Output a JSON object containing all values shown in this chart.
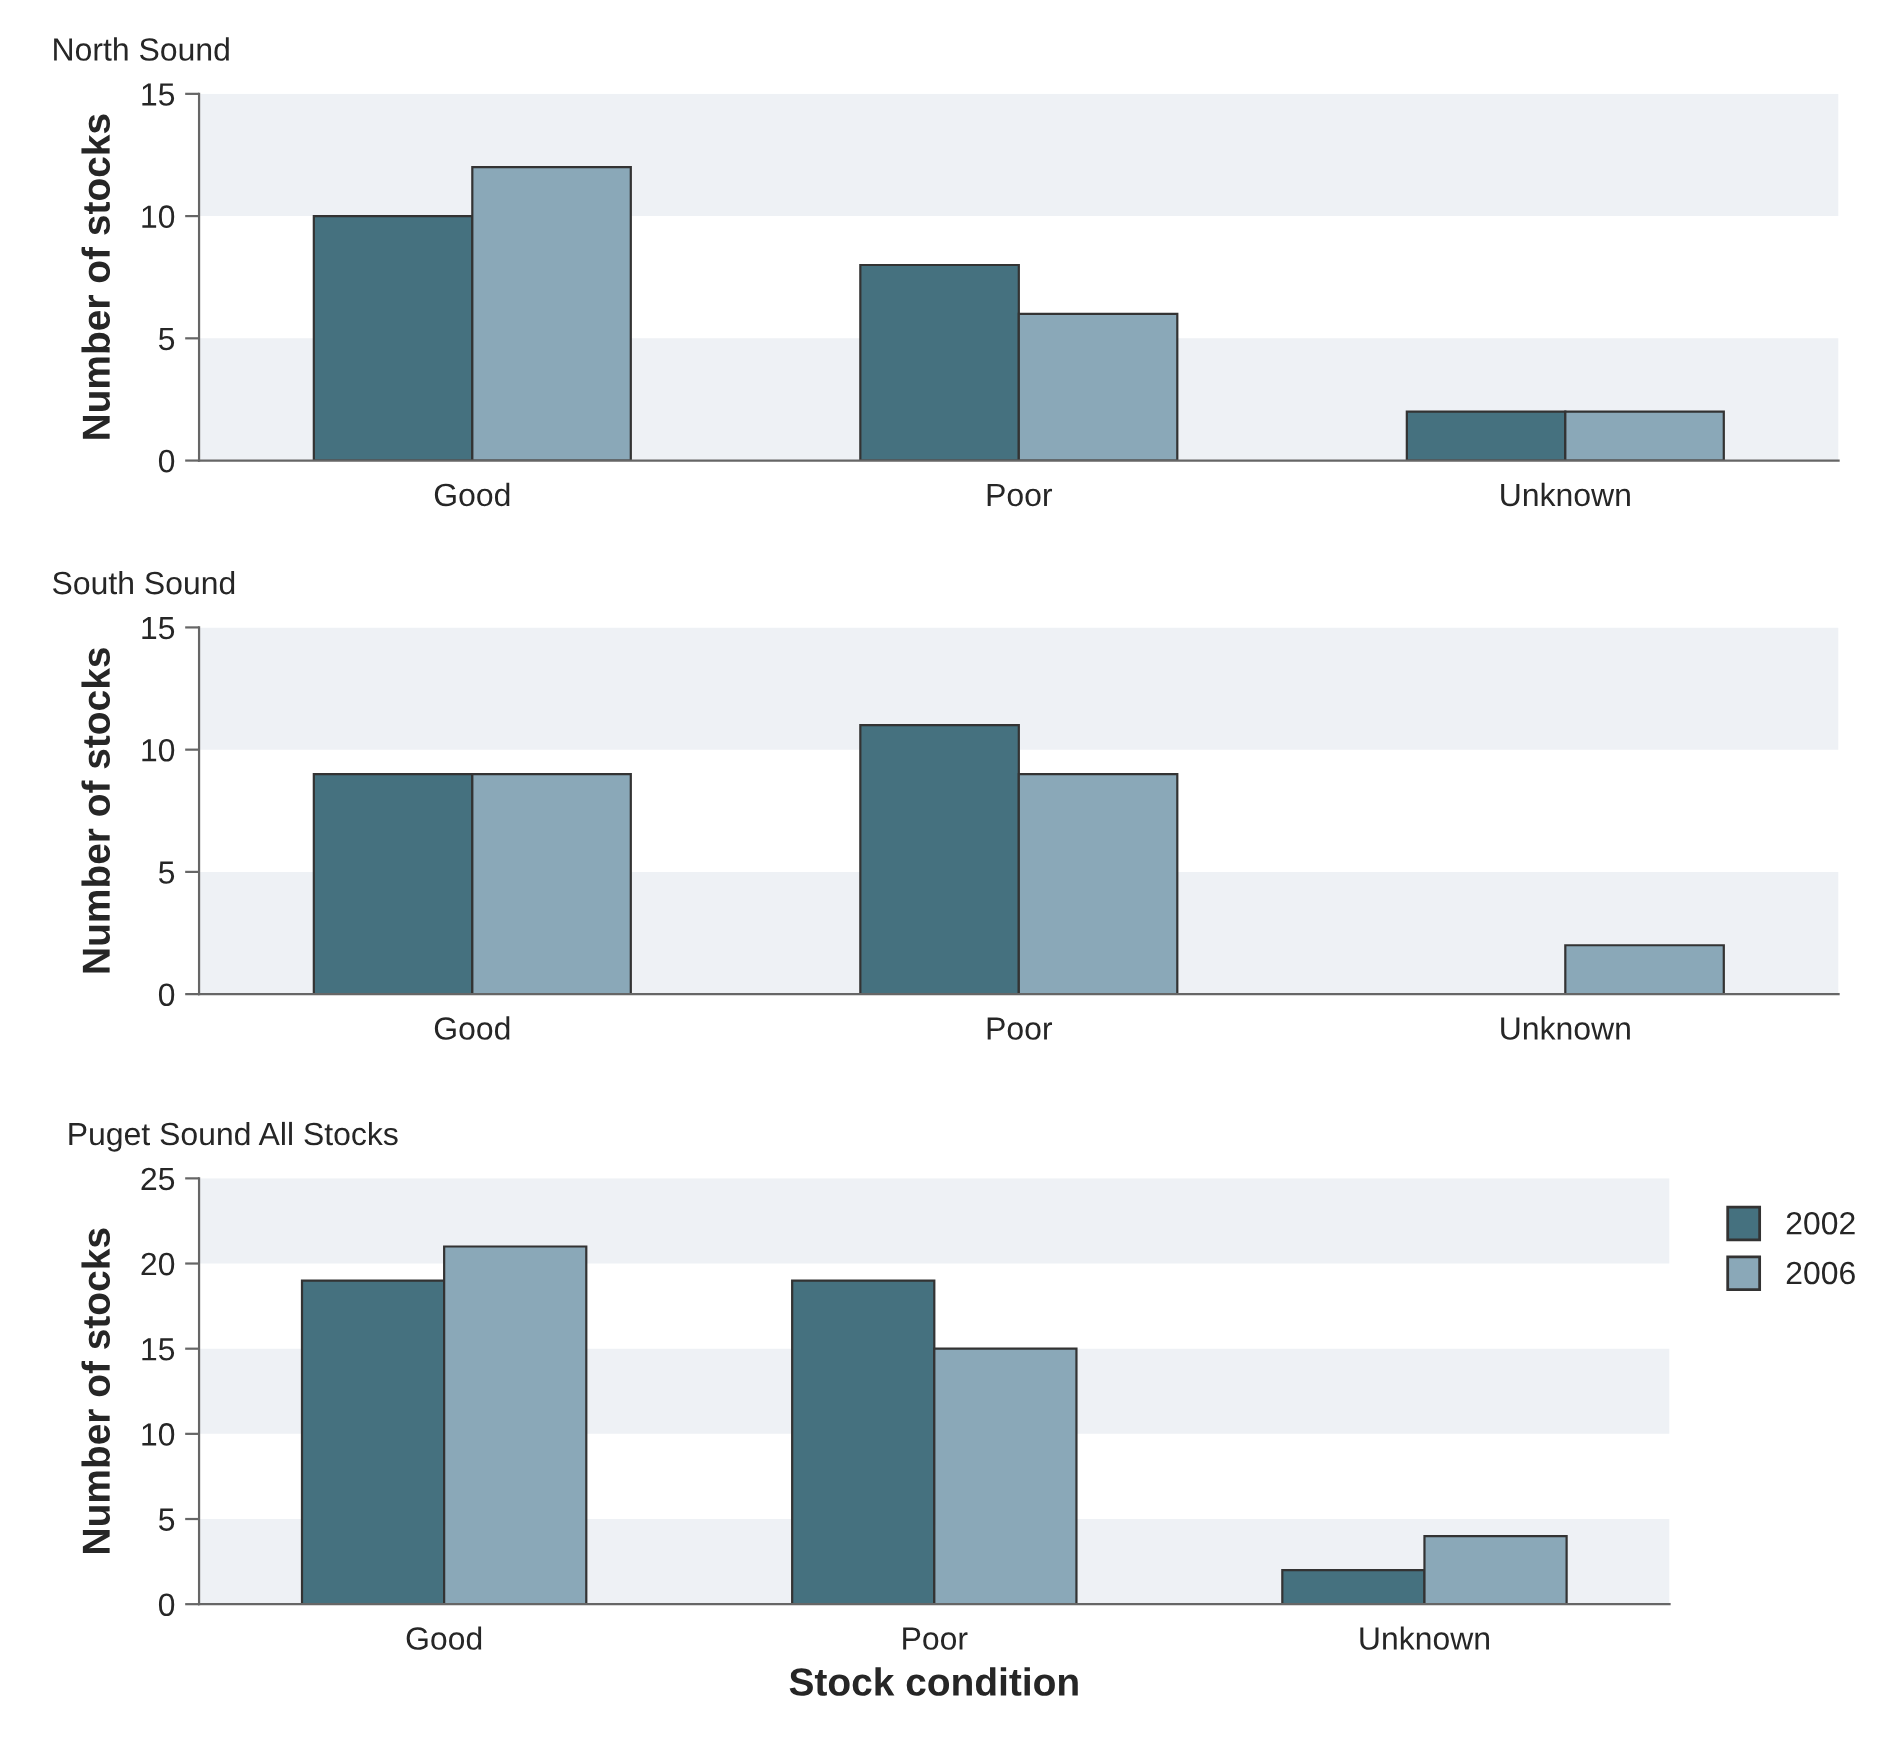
{
  "chart_data": [
    {
      "type": "bar",
      "title": "North Sound",
      "ylabel": "Number of stocks",
      "categories": [
        "Good",
        "Poor",
        "Unknown"
      ],
      "series": [
        {
          "color": "#45717f",
          "values": [
            10,
            8,
            2
          ]
        },
        {
          "color": "#8aa8b8",
          "values": [
            12,
            6,
            2
          ]
        }
      ],
      "ylim": [
        0,
        15
      ],
      "yticks": [
        0,
        5,
        10,
        15
      ],
      "bands": [
        {
          "axis": "y",
          "from": 0,
          "to": 5,
          "color": "#eef1f5"
        },
        {
          "axis": "y",
          "from": 10,
          "to": 15,
          "color": "#eef1f5"
        }
      ]
    },
    {
      "type": "bar",
      "title": "South Sound",
      "ylabel": "Number of stocks",
      "categories": [
        "Good",
        "Poor",
        "Unknown"
      ],
      "series": [
        {
          "color": "#45717f",
          "values": [
            9,
            11,
            null
          ]
        },
        {
          "color": "#8aa8b8",
          "values": [
            9,
            9,
            2
          ]
        }
      ],
      "ylim": [
        0,
        15
      ],
      "yticks": [
        0,
        5,
        10,
        15
      ],
      "bands": [
        {
          "axis": "y",
          "from": 0,
          "to": 5,
          "color": "#eef1f5"
        },
        {
          "axis": "y",
          "from": 10,
          "to": 15,
          "color": "#eef1f5"
        }
      ]
    },
    {
      "type": "bar",
      "title": "Puget Sound All Stocks",
      "ylabel": "Number of stocks",
      "xlabel": "Stock condition",
      "categories": [
        "Good",
        "Poor",
        "Unknown"
      ],
      "series": [
        {
          "name": "2002",
          "color": "#45717f",
          "values": [
            19,
            19,
            2
          ]
        },
        {
          "name": "2006",
          "color": "#8aa8b8",
          "values": [
            21,
            15,
            4
          ]
        }
      ],
      "ylim": [
        0,
        25
      ],
      "yticks": [
        0,
        5,
        10,
        15,
        20,
        25
      ],
      "legend": "top right",
      "bands": [
        {
          "axis": "y",
          "from": 0,
          "to": 5,
          "color": "#eef1f5"
        },
        {
          "axis": "y",
          "from": 10,
          "to": 15,
          "color": "#eef1f5"
        },
        {
          "axis": "y",
          "from": 20,
          "to": 25,
          "color": "#eef1f5"
        }
      ]
    }
  ]
}
